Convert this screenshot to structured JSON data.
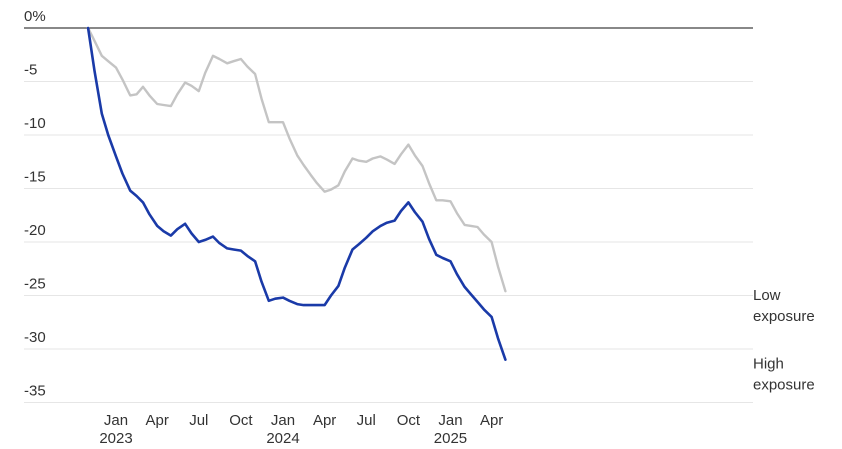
{
  "chart_data": {
    "type": "line",
    "ylim": [
      -35,
      0
    ],
    "yticks": [
      {
        "value": 0,
        "label": "0%"
      },
      {
        "value": -5,
        "label": "-5"
      },
      {
        "value": -10,
        "label": "-10"
      },
      {
        "value": -15,
        "label": "-15"
      },
      {
        "value": -20,
        "label": "-20"
      },
      {
        "value": -25,
        "label": "-25"
      },
      {
        "value": -30,
        "label": "-30"
      },
      {
        "value": -35,
        "label": "-35"
      }
    ],
    "xticks": [
      {
        "x": "2023-01-01",
        "label": "Jan",
        "sublabel": "2023"
      },
      {
        "x": "2023-04-01",
        "label": "Apr",
        "sublabel": ""
      },
      {
        "x": "2023-07-01",
        "label": "Jul",
        "sublabel": ""
      },
      {
        "x": "2023-10-01",
        "label": "Oct",
        "sublabel": ""
      },
      {
        "x": "2024-01-01",
        "label": "Jan",
        "sublabel": "2024"
      },
      {
        "x": "2024-04-01",
        "label": "Apr",
        "sublabel": ""
      },
      {
        "x": "2024-07-01",
        "label": "Jul",
        "sublabel": ""
      },
      {
        "x": "2024-10-01",
        "label": "Oct",
        "sublabel": ""
      },
      {
        "x": "2025-01-01",
        "label": "Jan",
        "sublabel": "2025"
      },
      {
        "x": "2025-04-01",
        "label": "Apr",
        "sublabel": ""
      }
    ],
    "x": [
      "2022-11-01",
      "2022-11-15",
      "2022-12-01",
      "2022-12-15",
      "2023-01-01",
      "2023-01-15",
      "2023-02-01",
      "2023-02-15",
      "2023-03-01",
      "2023-03-15",
      "2023-04-01",
      "2023-04-15",
      "2023-05-01",
      "2023-05-15",
      "2023-06-01",
      "2023-06-15",
      "2023-07-01",
      "2023-07-15",
      "2023-08-01",
      "2023-08-15",
      "2023-09-01",
      "2023-09-15",
      "2023-10-01",
      "2023-10-15",
      "2023-11-01",
      "2023-11-15",
      "2023-12-01",
      "2023-12-15",
      "2024-01-01",
      "2024-01-15",
      "2024-02-01",
      "2024-02-15",
      "2024-03-01",
      "2024-03-15",
      "2024-04-01",
      "2024-04-15",
      "2024-05-01",
      "2024-05-15",
      "2024-06-01",
      "2024-06-15",
      "2024-07-01",
      "2024-07-15",
      "2024-08-01",
      "2024-08-15",
      "2024-09-01",
      "2024-09-15",
      "2024-10-01",
      "2024-10-15",
      "2024-11-01",
      "2024-11-15",
      "2024-12-01",
      "2024-12-15",
      "2025-01-01",
      "2025-01-15",
      "2025-02-01",
      "2025-02-15",
      "2025-03-01",
      "2025-03-15",
      "2025-04-01",
      "2025-04-15",
      "2025-05-01"
    ],
    "series": [
      {
        "name": "Low exposure",
        "color": "#c4c4c4",
        "values": [
          0,
          -1.2,
          -2.6,
          -3.1,
          -3.7,
          -4.8,
          -6.3,
          -6.2,
          -5.5,
          -6.3,
          -7.1,
          -7.2,
          -7.3,
          -6.2,
          -5.1,
          -5.4,
          -5.9,
          -4.2,
          -2.6,
          -2.9,
          -3.3,
          -3.1,
          -2.9,
          -3.6,
          -4.3,
          -6.6,
          -8.8,
          -8.8,
          -8.8,
          -10.3,
          -11.9,
          -12.8,
          -13.7,
          -14.5,
          -15.3,
          -15.1,
          -14.7,
          -13.4,
          -12.2,
          -12.4,
          -12.5,
          -12.2,
          -12.0,
          -12.3,
          -12.7,
          -11.8,
          -10.9,
          -11.9,
          -12.9,
          -14.5,
          -16.1,
          -16.1,
          -16.2,
          -17.3,
          -18.4,
          -18.5,
          -18.6,
          -19.3,
          -20.0,
          -22.3,
          -24.6
        ]
      },
      {
        "name": "High exposure",
        "color": "#1a3aa8",
        "values": [
          0,
          -4,
          -8.0,
          -10,
          -12.0,
          -13.6,
          -15.2,
          -15.7,
          -16.3,
          -17.4,
          -18.5,
          -19.0,
          -19.4,
          -18.8,
          -18.3,
          -19.2,
          -20.0,
          -19.8,
          -19.5,
          -20.1,
          -20.6,
          -20.7,
          -20.8,
          -21.3,
          -21.8,
          -23.7,
          -25.5,
          -25.3,
          -25.2,
          -25.5,
          -25.8,
          -25.9,
          -25.9,
          -25.9,
          -25.9,
          -25.0,
          -24.1,
          -22.4,
          -20.7,
          -20.2,
          -19.6,
          -19.0,
          -18.5,
          -18.2,
          -18.0,
          -17.1,
          -16.3,
          -17.2,
          -18.1,
          -19.7,
          -21.2,
          -21.5,
          -21.8,
          -23.0,
          -24.2,
          -24.9,
          -25.6,
          -26.3,
          -27.0,
          -29.0,
          -31.0
        ]
      }
    ],
    "end_labels": [
      {
        "series": 0,
        "lines": [
          "Low",
          "exposure"
        ]
      },
      {
        "series": 1,
        "lines": [
          "High",
          "exposure"
        ]
      }
    ],
    "grid": true
  }
}
